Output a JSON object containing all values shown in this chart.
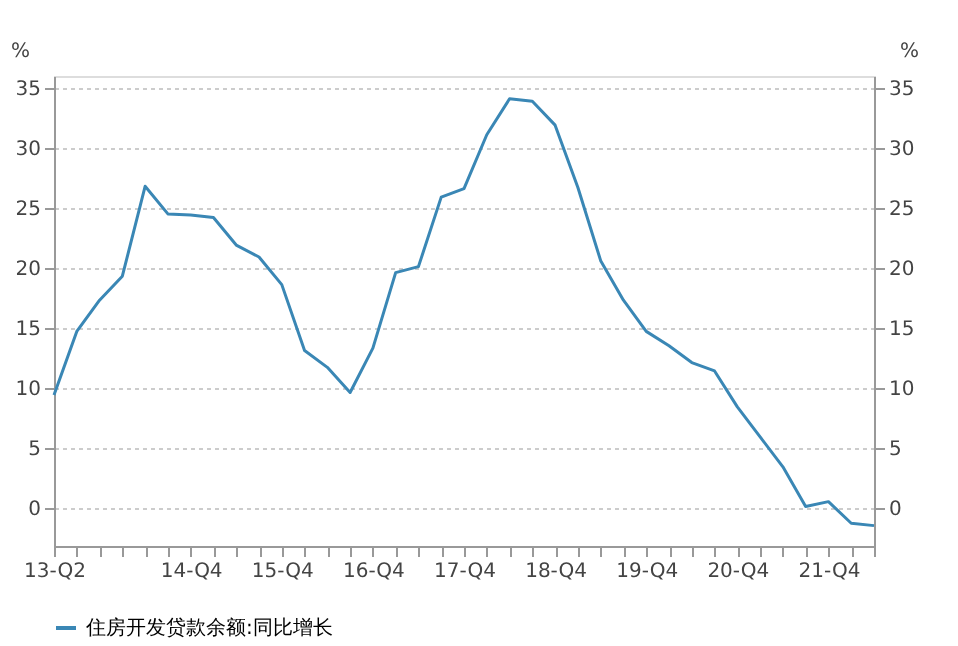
{
  "chart_data": {
    "type": "line",
    "categories": [
      "13-Q2",
      null,
      null,
      null,
      null,
      null,
      "14-Q4",
      null,
      null,
      null,
      "15-Q4",
      null,
      null,
      null,
      "16-Q4",
      null,
      null,
      null,
      "17-Q4",
      null,
      null,
      null,
      "18-Q4",
      null,
      null,
      null,
      "19-Q4",
      null,
      null,
      null,
      "20-Q4",
      null,
      null,
      null,
      "21-Q4",
      null,
      null
    ],
    "series": [
      {
        "name": "住房开发贷款余额:同比增长",
        "color": "#3a87b5",
        "values": [
          9.4,
          14.7,
          17.3,
          19.3,
          26.8,
          24.5,
          24.4,
          24.2,
          21.9,
          20.9,
          18.6,
          13.1,
          11.7,
          9.6,
          13.3,
          19.6,
          20.1,
          25.9,
          26.6,
          31.1,
          34.1,
          33.9,
          31.9,
          26.7,
          20.6,
          17.3,
          14.7,
          13.5,
          12.1,
          11.4,
          8.4,
          5.9,
          3.4,
          0.1,
          0.5,
          -1.3,
          -1.5
        ]
      }
    ],
    "ylabel": "%",
    "y2label": "%",
    "ylim": [
      -3.2,
      36
    ],
    "yticks": [
      0,
      5,
      10,
      15,
      20,
      25,
      30,
      35
    ],
    "y2lim": [
      -3.2,
      36
    ],
    "y2ticks": [
      0,
      5,
      10,
      15,
      20,
      25,
      30,
      35
    ],
    "grid": "y",
    "legend": "bottom",
    "line_style": "solid",
    "marker": "none"
  }
}
